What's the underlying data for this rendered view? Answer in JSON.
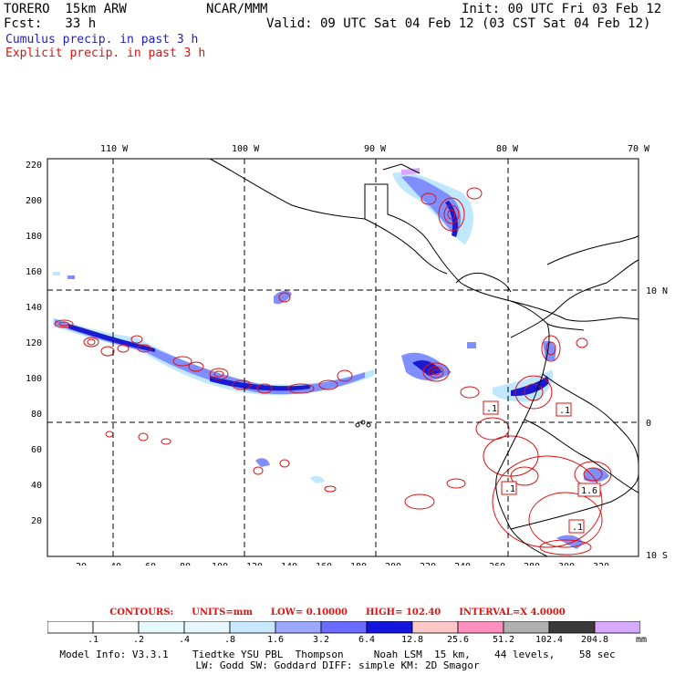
{
  "header": {
    "model": "TORERO  15km ARW",
    "center": "NCAR/MMM",
    "init": "Init: 00 UTC Fri 03 Feb 12",
    "fcst": "Fcst:   33 h",
    "valid": "Valid: 09 UTC Sat 04 Feb 12 (03 CST Sat 04 Feb 12)",
    "cumulus_label": "Cumulus precip. in past 3 h",
    "explicit_label": "Explicit precip. in past 3 h"
  },
  "map": {
    "top_lon_labels": [
      "110 W",
      "100 W",
      "90 W",
      "80 W",
      "70 W"
    ],
    "right_lat_labels": [
      "10 N",
      "0",
      "10 S"
    ],
    "y_ticks": [
      "220",
      "200",
      "180",
      "160",
      "140",
      "120",
      "100",
      "80",
      "60",
      "40",
      "20"
    ],
    "x_ticks": [
      "20",
      "40",
      "60",
      "80",
      "100",
      "120",
      "140",
      "160",
      "180",
      "200",
      "220",
      "240",
      "260",
      "280",
      "300",
      "320"
    ],
    "high_boxes": [
      ".1",
      ".1",
      ".1",
      "1.6",
      ".1"
    ],
    "colors": {
      "coast": "#000000",
      "grid": "#000000",
      "contour": "#e01010",
      "cumulus_light": "#bfe8ff",
      "cumulus_mid": "#7f8fff",
      "cumulus_dark": "#1a1ad0"
    }
  },
  "contours": {
    "label": "CONTOURS:",
    "units": "UNITS=mm",
    "low": "LOW= 0.10000",
    "high": "HIGH=  102.40",
    "interval": "INTERVAL=X  4.0000"
  },
  "colorbar": {
    "labels": [
      ".1",
      ".2",
      ".4",
      ".8",
      "1.6",
      "3.2",
      "6.4",
      "12.8",
      "25.6",
      "51.2",
      "102.4",
      "204.8"
    ],
    "colors": [
      "#ffffff",
      "#ffffff",
      "#e6f9ff",
      "#e6f7ff",
      "#c9e8ff",
      "#9aa8ff",
      "#6b6bff",
      "#1515e0",
      "#ffc8c8",
      "#ff8fbf",
      "#b0b0b0",
      "#3a3a3a",
      "#d8a8ff"
    ],
    "unit": "mm"
  },
  "model_info": {
    "line1": "Model Info: V3.3.1    Tiedtke YSU PBL  Thompson     Noah LSM  15 km,    44 levels,    58 sec",
    "line2": "LW: Godd SW: Goddard DIFF: simple KM: 2D Smagor"
  }
}
